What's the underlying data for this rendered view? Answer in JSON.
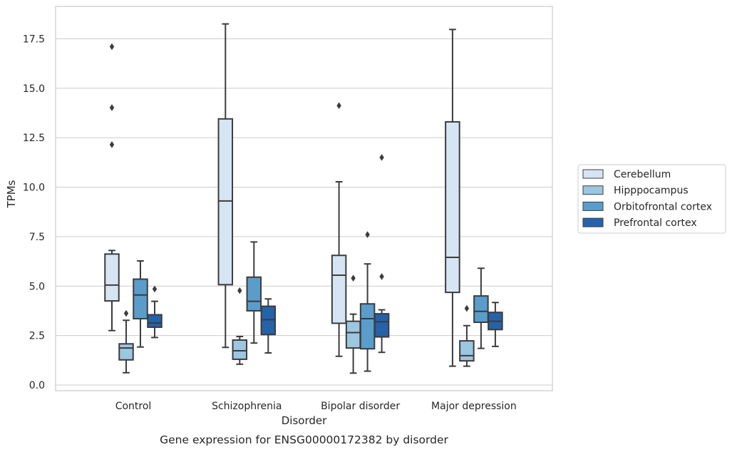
{
  "chart_data": {
    "type": "box",
    "xlabel": "Disorder",
    "ylabel": "TPMs",
    "caption": "Gene expression for ENSG00000172382 by disorder",
    "ylim": [
      -0.3,
      19.2
    ],
    "yticks": [
      0.0,
      2.5,
      5.0,
      7.5,
      10.0,
      12.5,
      15.0,
      17.5
    ],
    "ytick_labels": [
      "0.0",
      "2.5",
      "5.0",
      "7.5",
      "10.0",
      "12.5",
      "15.0",
      "17.5"
    ],
    "grid": "horizontal",
    "legend_position": "right",
    "categories": [
      "Control",
      "Schizophrenia",
      "Bipolar disorder",
      "Major depression"
    ],
    "series": [
      {
        "name": "Cerebellum",
        "color": "#d6e5f4",
        "boxes": [
          {
            "whislo": 2.75,
            "q1": 4.25,
            "med": 5.05,
            "q3": 6.62,
            "whishi": 6.8,
            "fliers": [
              12.15,
              14.02,
              17.1
            ]
          },
          {
            "whislo": 1.9,
            "q1": 5.07,
            "med": 9.3,
            "q3": 13.45,
            "whishi": 18.25,
            "fliers": []
          },
          {
            "whislo": 1.45,
            "q1": 3.12,
            "med": 5.55,
            "q3": 6.55,
            "whishi": 10.27,
            "fliers": [
              14.12
            ]
          },
          {
            "whislo": 0.95,
            "q1": 4.68,
            "med": 6.45,
            "q3": 13.3,
            "whishi": 17.97,
            "fliers": []
          }
        ]
      },
      {
        "name": "Hipppocampus",
        "color": "#9dc6e0",
        "boxes": [
          {
            "whislo": 0.62,
            "q1": 1.27,
            "med": 1.87,
            "q3": 2.08,
            "whishi": 3.27,
            "fliers": [
              3.62
            ]
          },
          {
            "whislo": 1.05,
            "q1": 1.3,
            "med": 1.73,
            "q3": 2.27,
            "whishi": 2.45,
            "fliers": [
              4.77
            ]
          },
          {
            "whislo": 0.6,
            "q1": 1.87,
            "med": 2.65,
            "q3": 3.22,
            "whishi": 3.58,
            "fliers": [
              5.4
            ]
          },
          {
            "whislo": 0.95,
            "q1": 1.22,
            "med": 1.48,
            "q3": 2.23,
            "whishi": 3.0,
            "fliers": [
              3.87
            ]
          }
        ]
      },
      {
        "name": "Orbitofrontal cortex",
        "color": "#5a9dcb",
        "boxes": [
          {
            "whislo": 1.92,
            "q1": 3.35,
            "med": 4.55,
            "q3": 5.35,
            "whishi": 6.27,
            "fliers": []
          },
          {
            "whislo": 2.12,
            "q1": 3.75,
            "med": 4.23,
            "q3": 5.45,
            "whishi": 7.23,
            "fliers": []
          },
          {
            "whislo": 0.7,
            "q1": 1.83,
            "med": 3.35,
            "q3": 4.1,
            "whishi": 6.12,
            "fliers": [
              7.6
            ]
          },
          {
            "whislo": 1.85,
            "q1": 3.17,
            "med": 3.72,
            "q3": 4.5,
            "whishi": 5.9,
            "fliers": []
          }
        ]
      },
      {
        "name": "Prefrontal cortex",
        "color": "#2562aa",
        "boxes": [
          {
            "whislo": 2.4,
            "q1": 2.92,
            "med": 3.13,
            "q3": 3.55,
            "whishi": 4.23,
            "fliers": [
              4.85
            ]
          },
          {
            "whislo": 1.62,
            "q1": 2.55,
            "med": 3.3,
            "q3": 3.98,
            "whishi": 4.35,
            "fliers": []
          },
          {
            "whislo": 1.65,
            "q1": 2.43,
            "med": 3.2,
            "q3": 3.6,
            "whishi": 3.8,
            "fliers": [
              5.48,
              11.5
            ]
          },
          {
            "whislo": 1.95,
            "q1": 2.8,
            "med": 3.22,
            "q3": 3.67,
            "whishi": 4.17,
            "fliers": []
          }
        ]
      }
    ]
  }
}
